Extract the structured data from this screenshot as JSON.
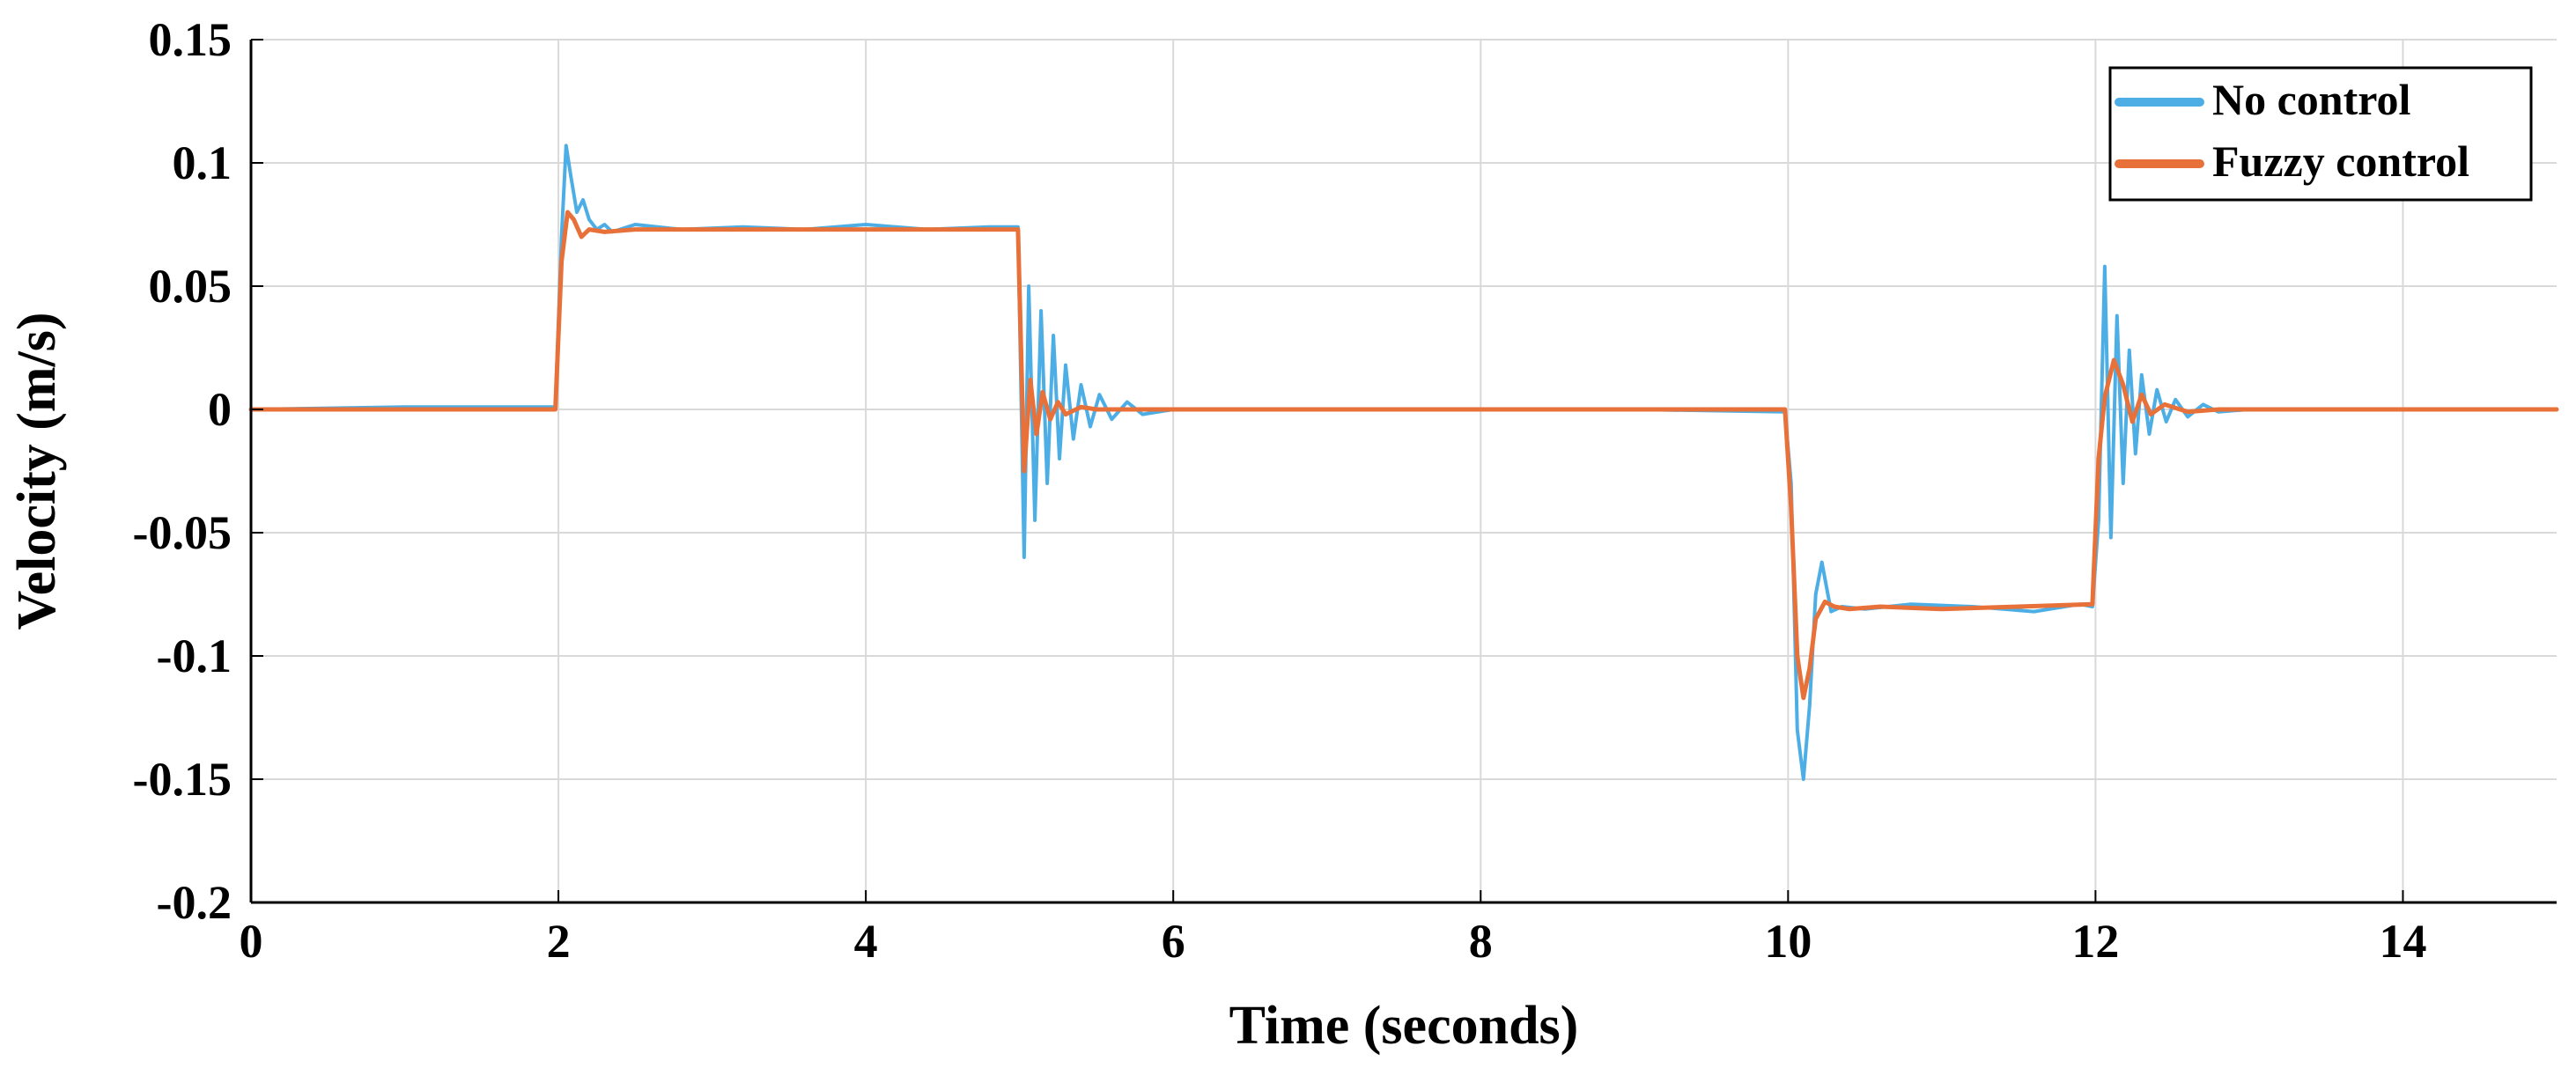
{
  "chart_data": {
    "type": "line",
    "title": "",
    "xlabel": "Time (seconds)",
    "ylabel": "Velocity (m/s)",
    "xlim": [
      0,
      15
    ],
    "ylim": [
      -0.2,
      0.15
    ],
    "xticks": [
      0,
      2,
      4,
      6,
      8,
      10,
      12,
      14
    ],
    "xtick_labels": [
      "0",
      "2",
      "4",
      "6",
      "8",
      "10",
      "12",
      "14"
    ],
    "yticks": [
      0.15,
      0.1,
      0.05,
      0,
      -0.05,
      -0.1,
      -0.15,
      -0.2
    ],
    "ytick_labels": [
      "0.15",
      "0.1",
      "0.05",
      "0",
      "-0.05",
      "-0.1",
      "-0.15",
      "-0.2"
    ],
    "grid": true,
    "legend_position": "top-right",
    "series": [
      {
        "name": "No control",
        "color": "#4daee6",
        "x": [
          0,
          1.0,
          1.98,
          2.02,
          2.05,
          2.08,
          2.12,
          2.16,
          2.2,
          2.25,
          2.3,
          2.35,
          2.5,
          2.8,
          3.2,
          3.6,
          4.0,
          4.4,
          4.8,
          4.99,
          5.03,
          5.06,
          5.1,
          5.14,
          5.18,
          5.22,
          5.26,
          5.3,
          5.35,
          5.4,
          5.46,
          5.52,
          5.6,
          5.7,
          5.8,
          6.0,
          7.0,
          8.0,
          9.0,
          9.98,
          10.02,
          10.06,
          10.1,
          10.14,
          10.18,
          10.22,
          10.28,
          10.35,
          10.5,
          10.8,
          11.2,
          11.6,
          11.9,
          11.98,
          12.02,
          12.06,
          12.1,
          12.14,
          12.18,
          12.22,
          12.26,
          12.3,
          12.35,
          12.4,
          12.46,
          12.52,
          12.6,
          12.7,
          12.8,
          13.0,
          14.0,
          15.0
        ],
        "y": [
          0,
          0.001,
          0.001,
          0.07,
          0.107,
          0.095,
          0.08,
          0.085,
          0.077,
          0.073,
          0.075,
          0.072,
          0.075,
          0.073,
          0.074,
          0.073,
          0.075,
          0.073,
          0.074,
          0.074,
          -0.06,
          0.05,
          -0.045,
          0.04,
          -0.03,
          0.03,
          -0.02,
          0.018,
          -0.012,
          0.01,
          -0.007,
          0.006,
          -0.004,
          0.003,
          -0.002,
          0.0,
          0.0,
          0.0,
          0.0,
          -0.001,
          -0.03,
          -0.13,
          -0.15,
          -0.12,
          -0.075,
          -0.062,
          -0.082,
          -0.08,
          -0.081,
          -0.079,
          -0.08,
          -0.082,
          -0.079,
          -0.08,
          -0.045,
          0.058,
          -0.052,
          0.038,
          -0.03,
          0.024,
          -0.018,
          0.014,
          -0.01,
          0.008,
          -0.005,
          0.004,
          -0.003,
          0.002,
          -0.001,
          0.0,
          0.0,
          0.0
        ]
      },
      {
        "name": "Fuzzy control",
        "color": "#e8713a",
        "x": [
          0,
          1.0,
          1.98,
          2.02,
          2.06,
          2.1,
          2.15,
          2.2,
          2.3,
          2.5,
          3.0,
          3.5,
          4.0,
          4.5,
          4.99,
          5.03,
          5.07,
          5.11,
          5.15,
          5.2,
          5.25,
          5.3,
          5.4,
          5.5,
          6.0,
          7.0,
          8.0,
          9.0,
          9.98,
          10.02,
          10.06,
          10.1,
          10.14,
          10.18,
          10.24,
          10.3,
          10.4,
          10.6,
          11.0,
          11.5,
          11.98,
          12.02,
          12.06,
          12.12,
          12.18,
          12.24,
          12.3,
          12.36,
          12.45,
          12.6,
          12.8,
          13.0,
          14.0,
          15.0
        ],
        "y": [
          0,
          0.0,
          0.0,
          0.06,
          0.08,
          0.077,
          0.07,
          0.073,
          0.072,
          0.073,
          0.073,
          0.073,
          0.073,
          0.073,
          0.073,
          -0.025,
          0.012,
          -0.01,
          0.007,
          -0.004,
          0.003,
          -0.002,
          0.001,
          0.0,
          0.0,
          0.0,
          0.0,
          0.0,
          0.0,
          -0.04,
          -0.1,
          -0.117,
          -0.105,
          -0.085,
          -0.078,
          -0.08,
          -0.081,
          -0.08,
          -0.081,
          -0.08,
          -0.079,
          -0.02,
          0.005,
          0.02,
          0.01,
          -0.005,
          0.006,
          -0.002,
          0.002,
          -0.001,
          0.0,
          0.0,
          0.0,
          0.0
        ]
      }
    ]
  }
}
